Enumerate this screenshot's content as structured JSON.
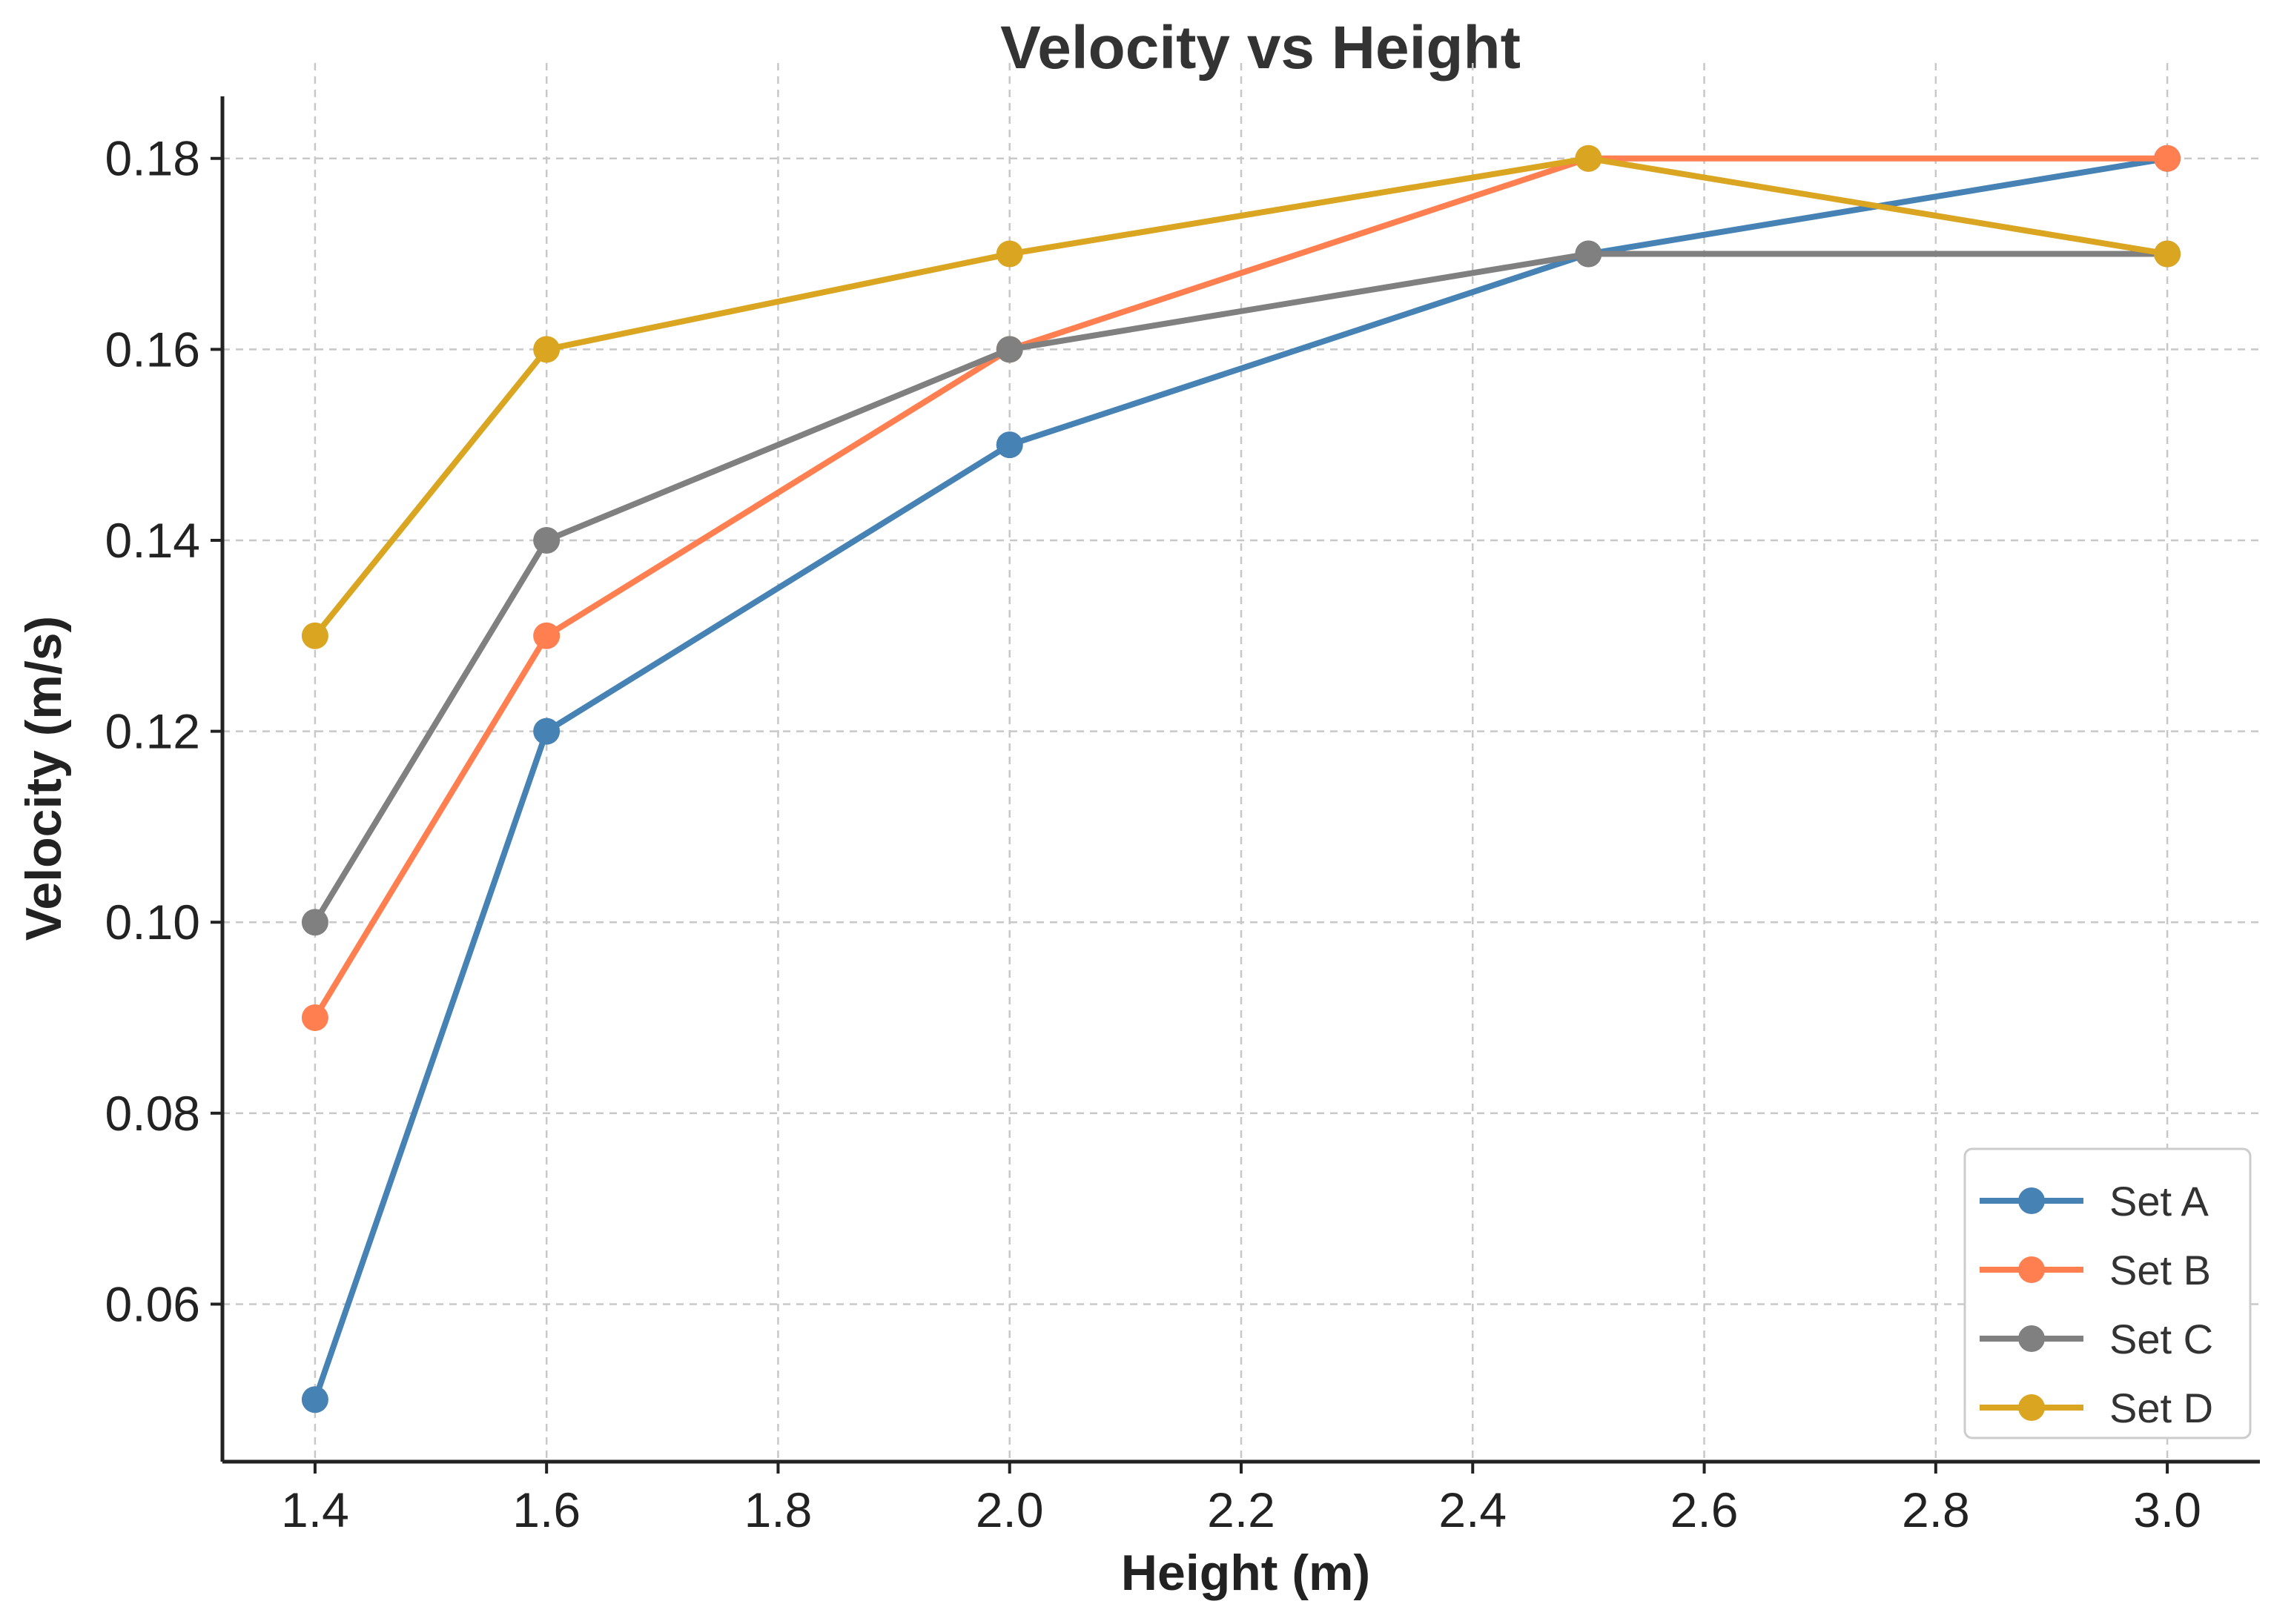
{
  "chart_data": {
    "type": "line",
    "title": "Velocity vs Height",
    "xlabel": "Height (m)",
    "ylabel": "Velocity (m/s)",
    "x": [
      1.4,
      1.6,
      2.0,
      2.5,
      3.0
    ],
    "xlim": [
      1.32,
      3.08
    ],
    "ylim": [
      0.0435,
      0.1865
    ],
    "xticks": [
      1.4,
      1.6,
      1.8,
      2.0,
      2.2,
      2.4,
      2.6,
      2.8,
      3.0
    ],
    "xtick_labels": [
      "1.4",
      "1.6",
      "1.8",
      "2.0",
      "2.2",
      "2.4",
      "2.6",
      "2.8",
      "3.0"
    ],
    "yticks": [
      0.06,
      0.08,
      0.1,
      0.12,
      0.14,
      0.16,
      0.18
    ],
    "ytick_labels": [
      "0.06",
      "0.08",
      "0.10",
      "0.12",
      "0.14",
      "0.16",
      "0.18"
    ],
    "grid": true,
    "legend_position": "bottom-right",
    "series": [
      {
        "name": "Set A",
        "color": "#4682B4",
        "values": [
          0.05,
          0.12,
          0.15,
          0.17,
          0.18
        ]
      },
      {
        "name": "Set B",
        "color": "#FF7F50",
        "values": [
          0.09,
          0.13,
          0.16,
          0.18,
          0.18
        ]
      },
      {
        "name": "Set C",
        "color": "#808080",
        "values": [
          0.1,
          0.14,
          0.16,
          0.17,
          0.17
        ]
      },
      {
        "name": "Set D",
        "color": "#DAA520",
        "values": [
          0.13,
          0.16,
          0.17,
          0.18,
          0.17
        ]
      }
    ]
  }
}
